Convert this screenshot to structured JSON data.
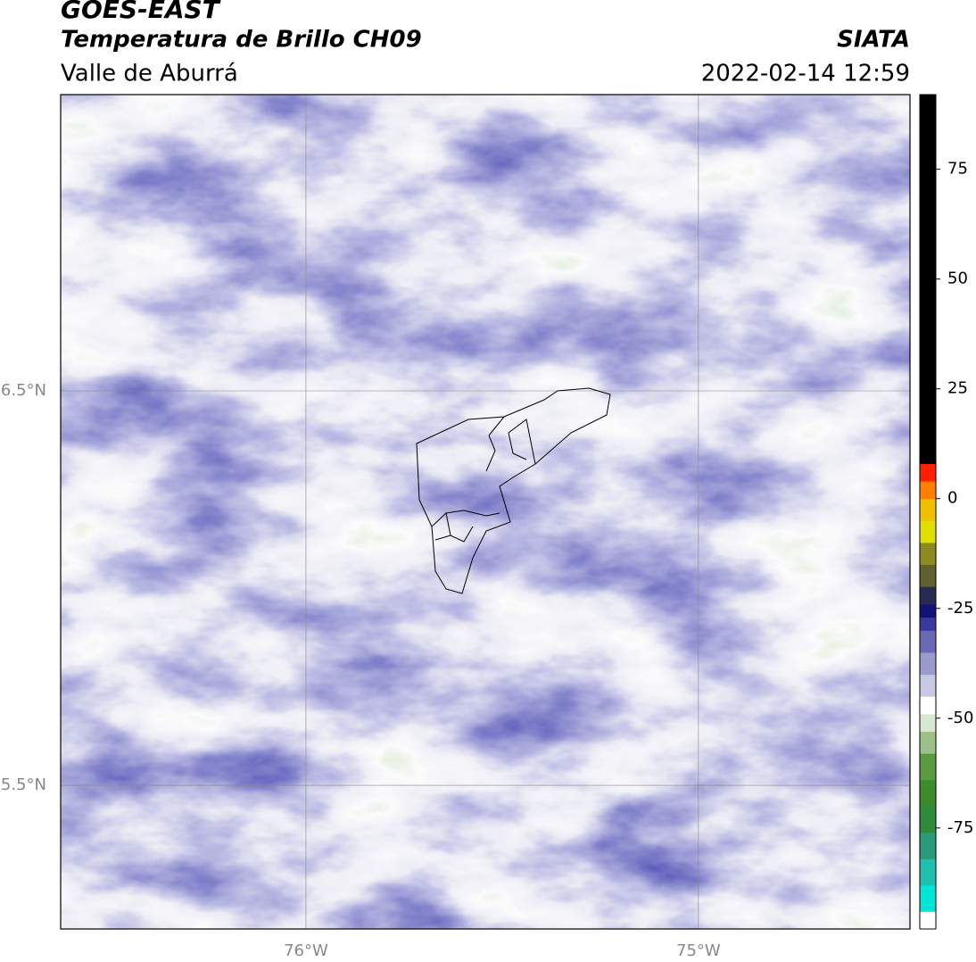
{
  "header": {
    "title": "GOES-EAST",
    "subtitle": "Temperatura de Brillo CH09",
    "region": "Valle de Aburrá",
    "source": "SIATA",
    "datetime": "2022-02-14 12:59"
  },
  "map": {
    "xlim": [
      -76.625,
      -74.461
    ],
    "ylim": [
      5.136,
      7.251
    ],
    "xticks": [
      {
        "value": -76,
        "label": "76°W"
      },
      {
        "value": -75,
        "label": "75°W"
      }
    ],
    "yticks": [
      {
        "value": 6.5,
        "label": "6.5°N"
      },
      {
        "value": 5.5,
        "label": "5.5°N"
      }
    ],
    "grid": true
  },
  "colorbar": {
    "lim": [
      -98,
      92
    ],
    "ticks": [
      75,
      50,
      25,
      0,
      -25,
      -50,
      -75
    ],
    "levels": [
      -98,
      -94,
      -88,
      -82,
      -76,
      -70,
      -64,
      -58,
      -53,
      -49,
      -45,
      -40,
      -35,
      -30,
      -27,
      -24,
      -20,
      -15,
      -10,
      -5,
      0,
      4,
      8,
      92
    ],
    "colors": [
      "#ffffff",
      "#00e5d8",
      "#20c0b0",
      "#2a9a78",
      "#2e8b3a",
      "#3d8a2a",
      "#5a9a40",
      "#9cc08a",
      "#d8e8d0",
      "#ffffff",
      "#c8c8e4",
      "#9a9acc",
      "#6a6ab4",
      "#3a3a9c",
      "#12127a",
      "#2a2a50",
      "#606030",
      "#8a8a20",
      "#e0e000",
      "#f0c000",
      "#ff8000",
      "#ff2000",
      "#000000"
    ]
  }
}
